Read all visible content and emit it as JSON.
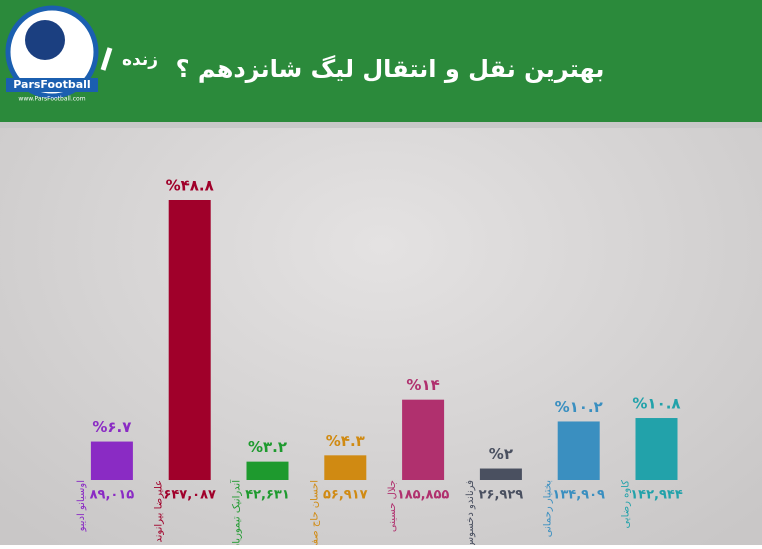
{
  "chart_data": {
    "type": "bar",
    "title": "بهترین نقل و انتقال لیگ شانزدهم ؟",
    "live_label": "زنده",
    "brand": "ParsFootball",
    "brand_url": "www.ParsFootball.com",
    "categories": [
      "اوسیانو ادیبو",
      "علیرضا بیرانوند",
      "آندرانیک تیموریان",
      "احسان حاج صفی",
      "جلال حسینی",
      "فرناندو دخسوس",
      "بختیار رحمانی",
      "کاوه رضایی"
    ],
    "values": [
      6.7,
      48.8,
      3.2,
      4.3,
      14,
      2,
      10.2,
      10.8
    ],
    "value_labels": [
      "%۶.۷",
      "%۴۸.۸",
      "%۳.۲",
      "%۴.۳",
      "%۱۴",
      "%۲",
      "%۱۰.۲",
      "%۱۰.۸"
    ],
    "counts": [
      89015,
      647087,
      42631,
      56917,
      185855,
      26929,
      134909,
      142944
    ],
    "count_labels": [
      "۸۹,۰۱۵",
      "۶۴۷,۰۸۷",
      "۴۲,۶۳۱",
      "۵۶,۹۱۷",
      "۱۸۵,۸۵۵",
      "۲۶,۹۲۹",
      "۱۳۴,۹۰۹",
      "۱۴۲,۹۴۴"
    ],
    "colors": [
      "#8a2bc4",
      "#a0002a",
      "#1e9a2e",
      "#d08a12",
      "#b0306e",
      "#4a5060",
      "#3a8fc0",
      "#22a2aa"
    ]
  }
}
